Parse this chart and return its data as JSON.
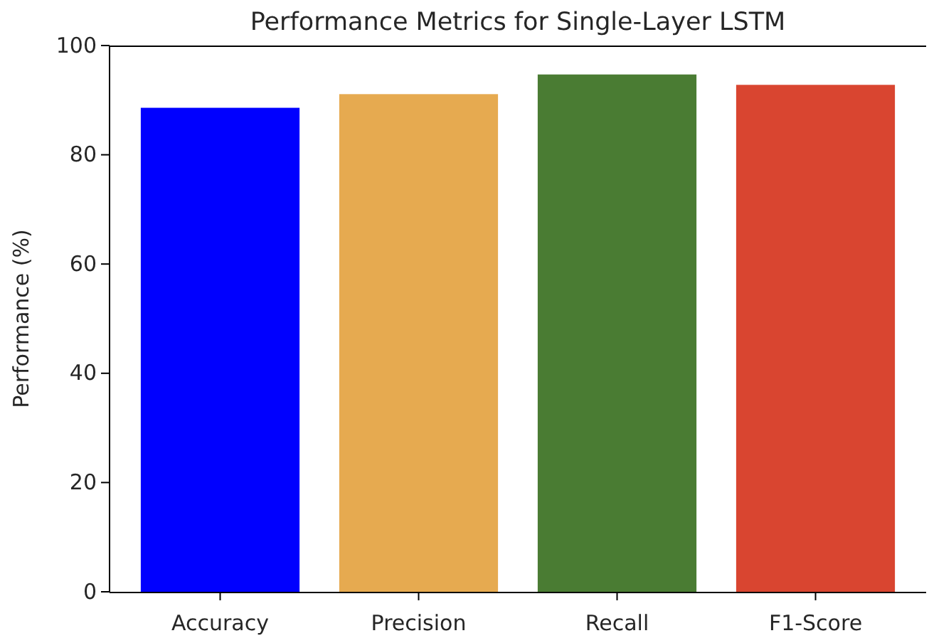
{
  "chart_data": {
    "type": "bar",
    "title": "Performance Metrics for Single-Layer LSTM",
    "ylabel": "Performance (%)",
    "categories": [
      "Accuracy",
      "Precision",
      "Recall",
      "F1-Score"
    ],
    "values": [
      88.6,
      91.1,
      94.7,
      92.8
    ],
    "colors": [
      "#0000ff",
      "#e6aa50",
      "#4a7c33",
      "#d94530"
    ],
    "ylim": [
      0,
      100
    ],
    "yticks": [
      0,
      20,
      40,
      60,
      80,
      100
    ],
    "grid": false
  }
}
